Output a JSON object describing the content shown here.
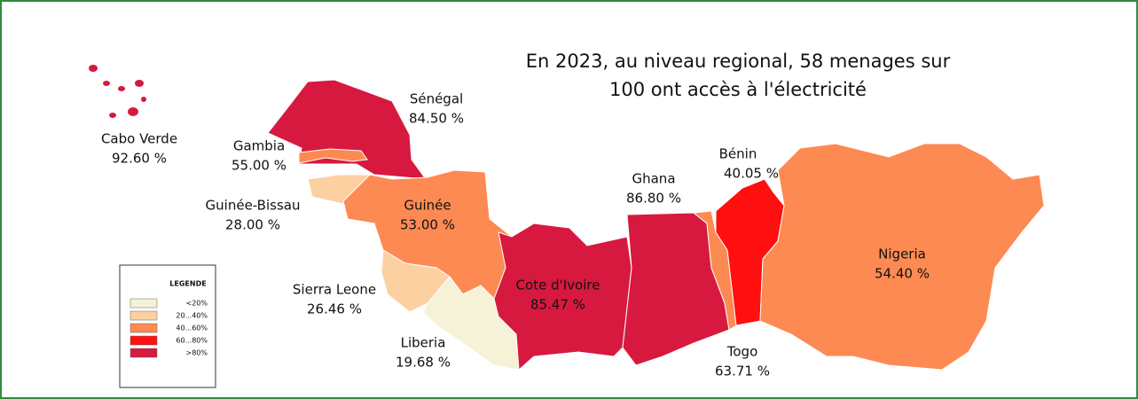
{
  "title": [
    "En 2023, au niveau regional, 58 menages sur",
    "100 ont accès à l'électricité"
  ],
  "countries": [
    {
      "name": "Cabo Verde",
      "value": "92.60 %",
      "color": "#d7193f"
    },
    {
      "name": "Sénégal",
      "value": "84.50 %",
      "color": "#d7193f"
    },
    {
      "name": "Gambia",
      "value": "55.00 %",
      "color": "#fd8a52"
    },
    {
      "name": "Guinée-Bissau",
      "value": "28.00 %",
      "color": "#fdd0a2"
    },
    {
      "name": "Guinée",
      "value": "53.00 %",
      "color": "#fd8a52"
    },
    {
      "name": "Sierra Leone",
      "value": "26.46 %",
      "color": "#fdd0a2"
    },
    {
      "name": "Liberia",
      "value": "19.68 %",
      "color": "#f5f2d8"
    },
    {
      "name": "Cote d'Ivoire",
      "value": "85.47 %",
      "color": "#d7193f"
    },
    {
      "name": "Ghana",
      "value": "86.80 %",
      "color": "#d7193f"
    },
    {
      "name": "Bénin",
      "value": "40.05 %",
      "color": "#fd8a52"
    },
    {
      "name": "Togo",
      "value": "63.71 %",
      "color": "#ff0f0f"
    },
    {
      "name": "Nigeria",
      "value": "54.40 %",
      "color": "#fd8a52"
    }
  ],
  "legend": {
    "title": "LEGENDE",
    "items": [
      {
        "label": "<20%",
        "color": "#f5f2d8"
      },
      {
        "label": "20...40%",
        "color": "#fdd0a2"
      },
      {
        "label": "40...60%",
        "color": "#fd8a52"
      },
      {
        "label": "60...80%",
        "color": "#ff0f0f"
      },
      {
        "label": ">80%",
        "color": "#d7193f"
      }
    ]
  }
}
